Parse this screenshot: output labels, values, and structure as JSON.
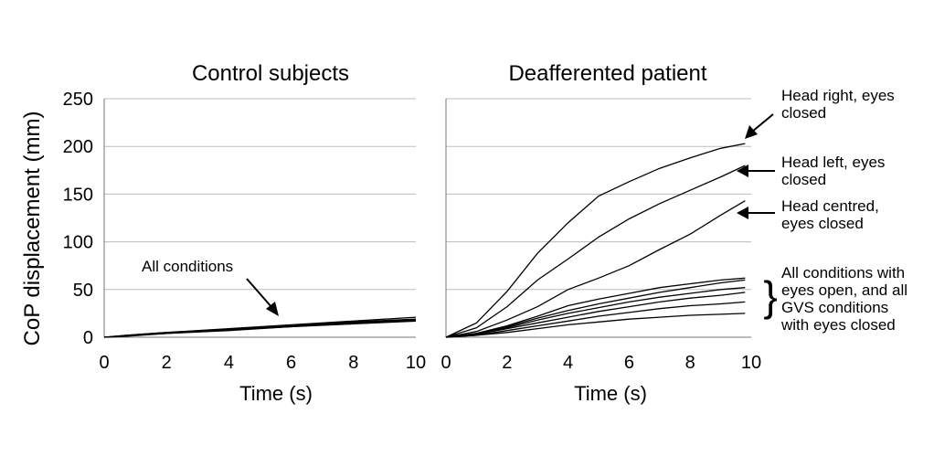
{
  "chart_data": [
    {
      "type": "line",
      "title": "Control subjects",
      "xlabel": "Time (s)",
      "ylabel": "CoP displacement (mm)",
      "xlim": [
        0,
        10
      ],
      "ylim": [
        0,
        250
      ],
      "xticks": [
        "0",
        "2",
        "4",
        "6",
        "8",
        "10"
      ],
      "yticks": [
        "0",
        "50",
        "100",
        "150",
        "200",
        "250"
      ],
      "grid": "horizontal",
      "annotations": [
        {
          "text": "All conditions",
          "points_to": "control series near t=5.8 s"
        }
      ],
      "series": [
        {
          "x": [
            0,
            0.7,
            2,
            4,
            6,
            8,
            10
          ],
          "y": [
            0,
            2,
            5,
            9,
            13,
            17,
            21
          ]
        },
        {
          "x": [
            0,
            0.7,
            2,
            4,
            6,
            8,
            10
          ],
          "y": [
            0,
            2,
            5,
            8,
            12,
            16,
            19
          ]
        },
        {
          "x": [
            0,
            0.7,
            2,
            4,
            6,
            8,
            10
          ],
          "y": [
            0,
            1.5,
            4,
            8,
            11,
            15,
            18
          ]
        },
        {
          "x": [
            0,
            0.7,
            2,
            4,
            6,
            8,
            10
          ],
          "y": [
            0,
            1,
            4,
            7,
            11,
            14,
            17
          ]
        }
      ]
    },
    {
      "type": "line",
      "title": "Deafferented patient",
      "xlabel": "Time (s)",
      "xlim": [
        0,
        10
      ],
      "ylim": [
        0,
        250
      ],
      "xticks": [
        "0",
        "2",
        "4",
        "6",
        "8",
        "10"
      ],
      "grid": "horizontal",
      "annotations": [
        {
          "text": [
            "Head right, eyes",
            "closed"
          ],
          "points_to": "top curve"
        },
        {
          "text": [
            "Head left, eyes",
            "closed"
          ],
          "points_to": "second curve"
        },
        {
          "text": [
            "Head centred,",
            "eyes closed"
          ],
          "points_to": "third curve"
        },
        {
          "text": [
            "All conditions with",
            "eyes open, and all",
            "GVS conditions",
            "with eyes closed"
          ],
          "marker": "}",
          "points_to": "lower bundle of curves"
        }
      ],
      "series": [
        {
          "name": "Head right, eyes closed",
          "x": [
            0,
            1,
            2,
            3,
            4,
            5,
            6,
            7,
            8,
            9,
            9.8
          ],
          "y": [
            0,
            15,
            48,
            88,
            120,
            148,
            163,
            177,
            188,
            198,
            203
          ]
        },
        {
          "name": "Head left, eyes closed",
          "x": [
            0,
            1,
            2,
            3,
            4,
            5,
            6,
            7,
            8,
            9,
            9.8
          ],
          "y": [
            0,
            10,
            32,
            60,
            82,
            105,
            124,
            140,
            154,
            168,
            180
          ]
        },
        {
          "name": "Head centred, eyes closed",
          "x": [
            0,
            1,
            2,
            3,
            4,
            5,
            6,
            7,
            8,
            9,
            9.8
          ],
          "y": [
            0,
            6,
            18,
            32,
            50,
            62,
            75,
            92,
            108,
            128,
            143
          ]
        },
        {
          "x": [
            0,
            1,
            2,
            3,
            4,
            5,
            6,
            7,
            8,
            9,
            9.8
          ],
          "y": [
            0,
            4,
            12,
            22,
            33,
            40,
            46,
            52,
            56,
            60,
            62
          ]
        },
        {
          "x": [
            0,
            1,
            2,
            3,
            4,
            5,
            6,
            7,
            8,
            9,
            9.8
          ],
          "y": [
            0,
            4,
            11,
            20,
            28,
            35,
            41,
            47,
            52,
            57,
            60
          ]
        },
        {
          "x": [
            0,
            1,
            2,
            3,
            4,
            5,
            6,
            7,
            8,
            9,
            9.8
          ],
          "y": [
            0,
            3,
            10,
            18,
            25,
            31,
            37,
            42,
            46,
            50,
            52
          ]
        },
        {
          "x": [
            0,
            1,
            2,
            3,
            4,
            5,
            6,
            7,
            8,
            9,
            9.8
          ],
          "y": [
            0,
            3,
            9,
            15,
            21,
            27,
            32,
            37,
            41,
            44,
            47
          ]
        },
        {
          "x": [
            0,
            1,
            2,
            3,
            4,
            5,
            6,
            7,
            8,
            9,
            9.8
          ],
          "y": [
            0,
            2,
            7,
            12,
            17,
            22,
            26,
            30,
            33,
            35,
            37
          ]
        },
        {
          "x": [
            0,
            1,
            2,
            3,
            4,
            5,
            6,
            7,
            8,
            9,
            9.8
          ],
          "y": [
            0,
            2,
            5,
            9,
            13,
            16,
            19,
            21,
            23,
            24,
            25
          ]
        }
      ]
    }
  ]
}
